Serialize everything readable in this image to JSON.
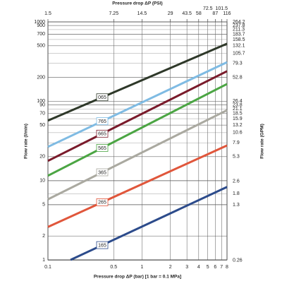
{
  "chart_data": {
    "type": "line",
    "x_label": "Pressure drop ΔP (bar) [1 bar = 0.1 MPa]",
    "x2_label": "Pressure drop ΔP (PSI)",
    "y_label": "Flow rate (l/min)",
    "y2_label": "Flow rate (GPM)",
    "log_x": true,
    "log_y": true,
    "grid": true,
    "xlim": [
      0.1,
      8
    ],
    "xticks": [
      0.1,
      0.5,
      1,
      2,
      3,
      4,
      5,
      6,
      7,
      8
    ],
    "x2lim": [
      1.45,
      116
    ],
    "x2ticks": [
      {
        "value": 1.45,
        "label": "1.5"
      },
      7.25,
      14.5,
      29,
      43.5,
      58,
      72.5,
      87,
      101.5,
      116
    ],
    "ylim": [
      1,
      1000
    ],
    "yticks": [
      1,
      2,
      5,
      10,
      20,
      50,
      70,
      90,
      100,
      200,
      500,
      700,
      900,
      1000
    ],
    "y2lim": [
      0.264,
      264.2
    ],
    "y2ticks": [
      0.26,
      1.3,
      1.8,
      2.6,
      5.3,
      7.9,
      10.6,
      13.2,
      15.9,
      18.5,
      21.1,
      23.8,
      26.4,
      52.8,
      79.3,
      105.7,
      132.1,
      158.5,
      183.7,
      211.3,
      237.8,
      264.2
    ],
    "series": [
      {
        "name": "065",
        "color": "#2e3829",
        "x": [
          0.1,
          8
        ],
        "values": [
          57,
          531
        ]
      },
      {
        "name": "765",
        "color": "#7fbbe3",
        "x": [
          0.1,
          8
        ],
        "values": [
          26.6,
          310
        ]
      },
      {
        "name": "665",
        "color": "#7a1b2b",
        "x": [
          0.1,
          8
        ],
        "values": [
          17.7,
          239
        ]
      },
      {
        "name": "565",
        "color": "#4ba543",
        "x": [
          0.1,
          8
        ],
        "values": [
          11.5,
          165
        ]
      },
      {
        "name": "365",
        "color": "#aaa9a0",
        "x": [
          0.1,
          8
        ],
        "values": [
          5.8,
          77
        ]
      },
      {
        "name": "265",
        "color": "#e0563b",
        "x": [
          0.1,
          8
        ],
        "values": [
          2.6,
          27.7
        ]
      },
      {
        "name": "165",
        "color": "#2c4b8b",
        "x": [
          0.174,
          8
        ],
        "values": [
          1,
          8.3
        ]
      }
    ]
  }
}
